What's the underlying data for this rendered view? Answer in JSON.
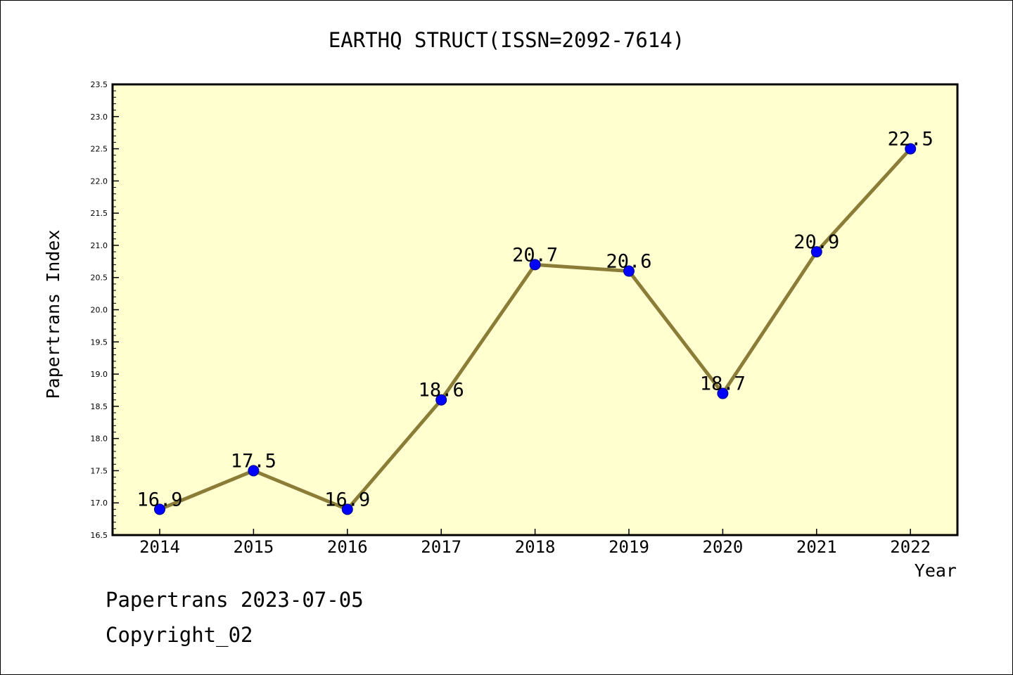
{
  "chart_data": {
    "type": "line",
    "title": "EARTHQ STRUCT(ISSN=2092-7614)",
    "xlabel": "Year",
    "ylabel": "Papertrans Index",
    "categories": [
      "2014",
      "2015",
      "2016",
      "2017",
      "2018",
      "2019",
      "2020",
      "2021",
      "2022"
    ],
    "values": [
      16.9,
      17.5,
      16.9,
      18.6,
      20.7,
      20.6,
      18.7,
      20.9,
      22.5
    ],
    "data_labels": [
      "16.9",
      "17.5",
      "16.9",
      "18.6",
      "20.7",
      "20.6",
      "18.7",
      "20.9",
      "22.5"
    ],
    "ylim": [
      16.5,
      23.5
    ],
    "yticks": [
      "16.5",
      "17.0",
      "17.5",
      "18.0",
      "18.5",
      "19.0",
      "19.5",
      "20.0",
      "20.5",
      "21.0",
      "21.5",
      "22.0",
      "22.5",
      "23.0",
      "23.5"
    ],
    "grid": false,
    "colors": {
      "plot_background": "#ffffd0",
      "line": "#8b7d38",
      "marker": "#0000ff"
    }
  },
  "footer": {
    "line1": "Papertrans 2023-07-05",
    "line2": "Copyright_02"
  }
}
